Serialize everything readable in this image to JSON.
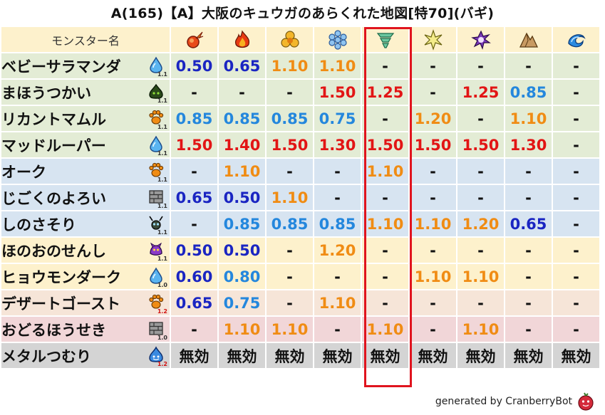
{
  "title": "A(165)【A】大阪のキュウガのあらくれた地図[特70](バギ)",
  "header": {
    "name_label": "モンスター名",
    "elements": [
      "fire-icon",
      "flame-icon",
      "earth-icon",
      "ice-icon",
      "wind-icon",
      "light-icon",
      "dark-icon",
      "rock-icon",
      "water-icon"
    ]
  },
  "highlight_column": 4,
  "colors": {
    "green_row": "#e3ecd5",
    "blue_row": "#d7e4f1",
    "yellow_row": "#fdf1cc",
    "peach_row": "#f6e5d8",
    "pink_row": "#f1d6d8",
    "gray_row": "#d4d4d4",
    "highlight": "#e0141e"
  },
  "rows": [
    {
      "name": "ベビーサラマンダ",
      "type": "water-drop-icon",
      "level": "1.1",
      "bg": "#e3ecd5",
      "values": [
        {
          "v": "0.50",
          "c": "blue"
        },
        {
          "v": "0.65",
          "c": "blue"
        },
        {
          "v": "1.10",
          "c": "orange"
        },
        {
          "v": "1.10",
          "c": "orange"
        },
        {
          "v": "-",
          "c": "dash"
        },
        {
          "v": "-",
          "c": "dash"
        },
        {
          "v": "-",
          "c": "dash"
        },
        {
          "v": "-",
          "c": "dash"
        },
        {
          "v": "-",
          "c": "dash"
        }
      ]
    },
    {
      "name": "まほうつかい",
      "type": "slime-dark-icon",
      "level": "1.1",
      "bg": "#e3ecd5",
      "values": [
        {
          "v": "-",
          "c": "dash"
        },
        {
          "v": "-",
          "c": "dash"
        },
        {
          "v": "-",
          "c": "dash"
        },
        {
          "v": "1.50",
          "c": "red"
        },
        {
          "v": "1.25",
          "c": "red"
        },
        {
          "v": "-",
          "c": "dash"
        },
        {
          "v": "1.25",
          "c": "red"
        },
        {
          "v": "0.85",
          "c": "lblue"
        },
        {
          "v": "-",
          "c": "dash"
        }
      ]
    },
    {
      "name": "リカントマムル",
      "type": "paw-icon",
      "level": "1.1",
      "bg": "#e3ecd5",
      "values": [
        {
          "v": "0.85",
          "c": "lblue"
        },
        {
          "v": "0.85",
          "c": "lblue"
        },
        {
          "v": "0.85",
          "c": "lblue"
        },
        {
          "v": "0.75",
          "c": "lblue"
        },
        {
          "v": "-",
          "c": "dash"
        },
        {
          "v": "1.20",
          "c": "orange"
        },
        {
          "v": "-",
          "c": "dash"
        },
        {
          "v": "1.10",
          "c": "orange"
        },
        {
          "v": "-",
          "c": "dash"
        }
      ]
    },
    {
      "name": "マッドルーパー",
      "type": "water-drop-icon",
      "level": "1.1",
      "bg": "#e3ecd5",
      "values": [
        {
          "v": "1.50",
          "c": "red"
        },
        {
          "v": "1.40",
          "c": "red"
        },
        {
          "v": "1.50",
          "c": "red"
        },
        {
          "v": "1.30",
          "c": "red"
        },
        {
          "v": "1.50",
          "c": "red"
        },
        {
          "v": "1.50",
          "c": "red"
        },
        {
          "v": "1.50",
          "c": "red"
        },
        {
          "v": "1.30",
          "c": "red"
        },
        {
          "v": "-",
          "c": "dash"
        }
      ]
    },
    {
      "name": "オーク",
      "type": "paw-icon",
      "level": "1.1",
      "bg": "#d7e4f1",
      "values": [
        {
          "v": "-",
          "c": "dash"
        },
        {
          "v": "1.10",
          "c": "orange"
        },
        {
          "v": "-",
          "c": "dash"
        },
        {
          "v": "-",
          "c": "dash"
        },
        {
          "v": "1.10",
          "c": "orange"
        },
        {
          "v": "-",
          "c": "dash"
        },
        {
          "v": "-",
          "c": "dash"
        },
        {
          "v": "-",
          "c": "dash"
        },
        {
          "v": "-",
          "c": "dash"
        }
      ]
    },
    {
      "name": "じごくのよろい",
      "type": "brick-icon",
      "level": "1.1",
      "bg": "#d7e4f1",
      "values": [
        {
          "v": "0.65",
          "c": "blue"
        },
        {
          "v": "0.50",
          "c": "blue"
        },
        {
          "v": "1.10",
          "c": "orange"
        },
        {
          "v": "-",
          "c": "dash"
        },
        {
          "v": "-",
          "c": "dash"
        },
        {
          "v": "-",
          "c": "dash"
        },
        {
          "v": "-",
          "c": "dash"
        },
        {
          "v": "-",
          "c": "dash"
        },
        {
          "v": "-",
          "c": "dash"
        }
      ]
    },
    {
      "name": "しのさそり",
      "type": "bug-icon",
      "level": "1.1",
      "bg": "#d7e4f1",
      "values": [
        {
          "v": "-",
          "c": "dash"
        },
        {
          "v": "0.85",
          "c": "lblue"
        },
        {
          "v": "0.85",
          "c": "lblue"
        },
        {
          "v": "0.85",
          "c": "lblue"
        },
        {
          "v": "1.10",
          "c": "orange"
        },
        {
          "v": "1.10",
          "c": "orange"
        },
        {
          "v": "1.20",
          "c": "orange"
        },
        {
          "v": "0.65",
          "c": "blue"
        },
        {
          "v": "-",
          "c": "dash"
        }
      ]
    },
    {
      "name": "ほのおのせんし",
      "type": "demon-icon",
      "level": "1.1",
      "bg": "#fdf1cc",
      "values": [
        {
          "v": "0.50",
          "c": "blue"
        },
        {
          "v": "0.50",
          "c": "blue"
        },
        {
          "v": "-",
          "c": "dash"
        },
        {
          "v": "1.20",
          "c": "orange"
        },
        {
          "v": "-",
          "c": "dash"
        },
        {
          "v": "-",
          "c": "dash"
        },
        {
          "v": "-",
          "c": "dash"
        },
        {
          "v": "-",
          "c": "dash"
        },
        {
          "v": "-",
          "c": "dash"
        }
      ]
    },
    {
      "name": "ヒョウモンダーク",
      "type": "water-drop-icon",
      "level": "1.0",
      "bg": "#fdf1cc",
      "values": [
        {
          "v": "0.60",
          "c": "blue"
        },
        {
          "v": "0.80",
          "c": "lblue"
        },
        {
          "v": "-",
          "c": "dash"
        },
        {
          "v": "-",
          "c": "dash"
        },
        {
          "v": "-",
          "c": "dash"
        },
        {
          "v": "1.10",
          "c": "orange"
        },
        {
          "v": "1.10",
          "c": "orange"
        },
        {
          "v": "-",
          "c": "dash"
        },
        {
          "v": "-",
          "c": "dash"
        }
      ]
    },
    {
      "name": "デザートゴースト",
      "type": "paw-icon",
      "level": "1.2",
      "bg": "#f6e5d8",
      "values": [
        {
          "v": "0.65",
          "c": "blue"
        },
        {
          "v": "0.75",
          "c": "lblue"
        },
        {
          "v": "-",
          "c": "dash"
        },
        {
          "v": "1.10",
          "c": "orange"
        },
        {
          "v": "-",
          "c": "dash"
        },
        {
          "v": "-",
          "c": "dash"
        },
        {
          "v": "-",
          "c": "dash"
        },
        {
          "v": "-",
          "c": "dash"
        },
        {
          "v": "-",
          "c": "dash"
        }
      ]
    },
    {
      "name": "おどるほうせき",
      "type": "brick-icon",
      "level": "1.0",
      "bg": "#f1d6d8",
      "values": [
        {
          "v": "-",
          "c": "dash"
        },
        {
          "v": "1.10",
          "c": "orange"
        },
        {
          "v": "1.10",
          "c": "orange"
        },
        {
          "v": "-",
          "c": "dash"
        },
        {
          "v": "1.10",
          "c": "orange"
        },
        {
          "v": "-",
          "c": "dash"
        },
        {
          "v": "1.10",
          "c": "orange"
        },
        {
          "v": "-",
          "c": "dash"
        },
        {
          "v": "-",
          "c": "dash"
        }
      ]
    },
    {
      "name": "メタルつむり",
      "type": "slime-icon",
      "level": "1.2",
      "bg": "#d4d4d4",
      "values": [
        {
          "v": "無効",
          "c": "black"
        },
        {
          "v": "無効",
          "c": "black"
        },
        {
          "v": "無効",
          "c": "black"
        },
        {
          "v": "無効",
          "c": "black"
        },
        {
          "v": "無効",
          "c": "black"
        },
        {
          "v": "無効",
          "c": "black"
        },
        {
          "v": "無効",
          "c": "black"
        },
        {
          "v": "無効",
          "c": "black"
        },
        {
          "v": "無効",
          "c": "black"
        }
      ]
    }
  ],
  "footer": {
    "text": "generated by CranberryBot",
    "logo": "cranberry-icon"
  }
}
